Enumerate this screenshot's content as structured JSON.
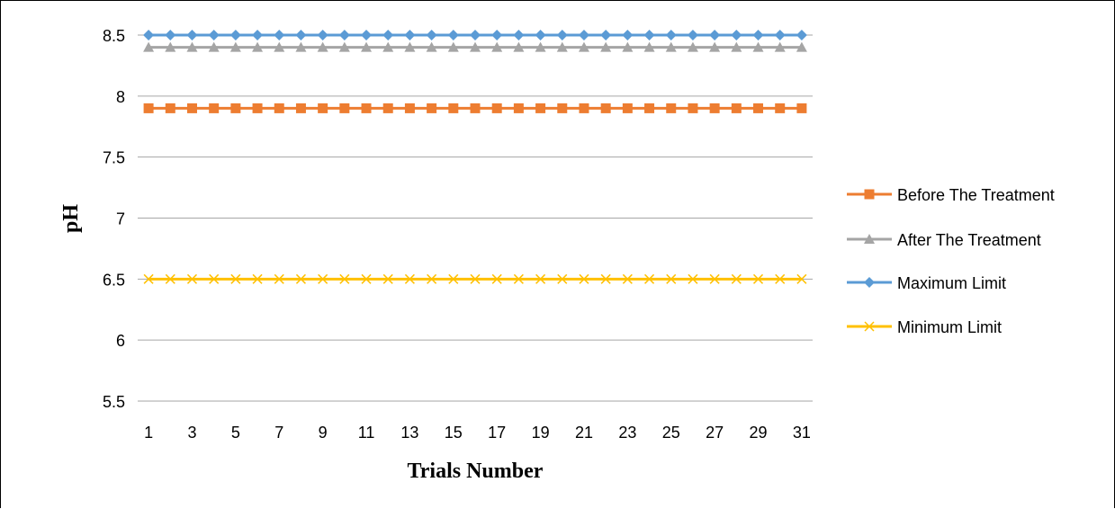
{
  "chart_data": {
    "type": "line",
    "title": "",
    "xlabel": "Trials Number",
    "ylabel": "pH",
    "ylim": [
      5.5,
      8.5
    ],
    "yticks": [
      5.5,
      6,
      6.5,
      7,
      7.5,
      8,
      8.5
    ],
    "ytick_labels": [
      "5.5",
      "6",
      "6.5",
      "7",
      "7.5",
      "8",
      "8.5"
    ],
    "x": [
      1,
      2,
      3,
      4,
      5,
      6,
      7,
      8,
      9,
      10,
      11,
      12,
      13,
      14,
      15,
      16,
      17,
      18,
      19,
      20,
      21,
      22,
      23,
      24,
      25,
      26,
      27,
      28,
      29,
      30,
      31
    ],
    "xtick_labels": [
      "1",
      "3",
      "5",
      "7",
      "9",
      "11",
      "13",
      "15",
      "17",
      "19",
      "21",
      "23",
      "25",
      "27",
      "29",
      "31"
    ],
    "grid": true,
    "legend_position": "right",
    "series": [
      {
        "name": "Before The Treatment",
        "color": "#ED7D31",
        "marker": "square",
        "values": [
          7.9,
          7.9,
          7.9,
          7.9,
          7.9,
          7.9,
          7.9,
          7.9,
          7.9,
          7.9,
          7.9,
          7.9,
          7.9,
          7.9,
          7.9,
          7.9,
          7.9,
          7.9,
          7.9,
          7.9,
          7.9,
          7.9,
          7.9,
          7.9,
          7.9,
          7.9,
          7.9,
          7.9,
          7.9,
          7.9,
          7.9
        ]
      },
      {
        "name": "After The Treatment",
        "color": "#A5A5A5",
        "marker": "triangle",
        "values": [
          8.4,
          8.4,
          8.4,
          8.4,
          8.4,
          8.4,
          8.4,
          8.4,
          8.4,
          8.4,
          8.4,
          8.4,
          8.4,
          8.4,
          8.4,
          8.4,
          8.4,
          8.4,
          8.4,
          8.4,
          8.4,
          8.4,
          8.4,
          8.4,
          8.4,
          8.4,
          8.4,
          8.4,
          8.4,
          8.4,
          8.4
        ]
      },
      {
        "name": "Maximum Limit",
        "color": "#5B9BD5",
        "marker": "diamond",
        "values": [
          8.5,
          8.5,
          8.5,
          8.5,
          8.5,
          8.5,
          8.5,
          8.5,
          8.5,
          8.5,
          8.5,
          8.5,
          8.5,
          8.5,
          8.5,
          8.5,
          8.5,
          8.5,
          8.5,
          8.5,
          8.5,
          8.5,
          8.5,
          8.5,
          8.5,
          8.5,
          8.5,
          8.5,
          8.5,
          8.5,
          8.5
        ]
      },
      {
        "name": "Minimum Limit",
        "color": "#FFC000",
        "marker": "x",
        "values": [
          6.5,
          6.5,
          6.5,
          6.5,
          6.5,
          6.5,
          6.5,
          6.5,
          6.5,
          6.5,
          6.5,
          6.5,
          6.5,
          6.5,
          6.5,
          6.5,
          6.5,
          6.5,
          6.5,
          6.5,
          6.5,
          6.5,
          6.5,
          6.5,
          6.5,
          6.5,
          6.5,
          6.5,
          6.5,
          6.5,
          6.5
        ]
      }
    ]
  }
}
